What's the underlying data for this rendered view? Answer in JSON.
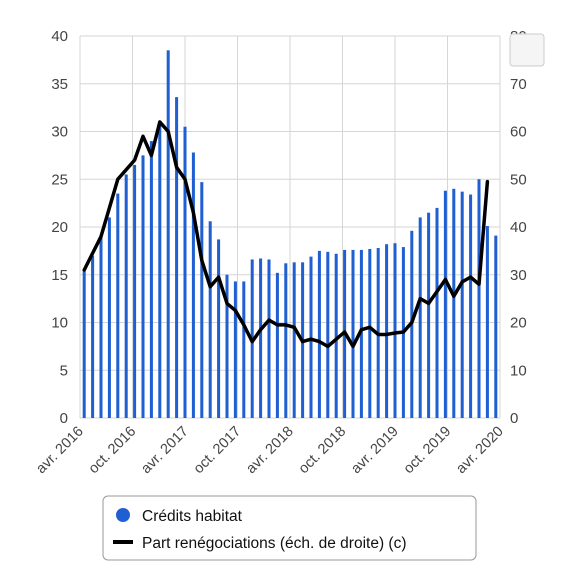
{
  "chart_data": {
    "type": "bar",
    "x_tick_labels": [
      "avr. 2016",
      "oct. 2016",
      "avr. 2017",
      "oct. 2017",
      "avr. 2018",
      "oct. 2018",
      "avr. 2019",
      "oct. 2019",
      "avr. 2020"
    ],
    "y_left": {
      "ylim": [
        0,
        40
      ],
      "ticks": [
        0,
        5,
        10,
        15,
        20,
        25,
        30,
        35,
        40
      ]
    },
    "y_right": {
      "ylim": [
        0,
        80
      ],
      "ticks": [
        0,
        10,
        20,
        30,
        40,
        50,
        60,
        70,
        80
      ]
    },
    "grid": true,
    "legend_position": "bottom",
    "colors": {
      "bars": "#1f5fd1",
      "line": "#000000",
      "grid": "#d6d6d6"
    },
    "series": [
      {
        "name": "Crédits habitat",
        "type": "bar",
        "axis": "left",
        "values": [
          15.5,
          17.0,
          19.0,
          21.0,
          23.5,
          25.5,
          26.5,
          27.5,
          29.0,
          30.8,
          38.5,
          33.6,
          30.5,
          27.8,
          24.7,
          20.6,
          18.7,
          15.0,
          14.3,
          14.3,
          16.6,
          16.7,
          16.6,
          15.2,
          16.2,
          16.3,
          16.3,
          16.9,
          17.5,
          17.4,
          17.2,
          17.6,
          17.6,
          17.6,
          17.7,
          17.8,
          18.2,
          18.3,
          17.9,
          19.6,
          21.0,
          21.5,
          22.0,
          23.8,
          24.0,
          23.7,
          23.4,
          25.0,
          20.1,
          19.1
        ]
      },
      {
        "name": "Part renégociations (éch. de droite) (c)",
        "type": "line",
        "axis": "right",
        "values": [
          31.0,
          34.5,
          38.0,
          44.0,
          50.0,
          52.0,
          54.0,
          59.0,
          55.0,
          62.0,
          60.0,
          52.5,
          50.0,
          43.0,
          33.0,
          27.5,
          29.5,
          24.0,
          22.5,
          19.5,
          16.0,
          18.5,
          20.5,
          19.5,
          19.5,
          19.0,
          16.0,
          16.5,
          16.0,
          15.0,
          16.5,
          18.0,
          15.0,
          18.5,
          19.0,
          17.5,
          17.5,
          17.8,
          18.0,
          20.0,
          25.0,
          24.0,
          26.5,
          29.0,
          25.5,
          28.5,
          29.5,
          28.0,
          49.5
        ]
      }
    ]
  }
}
